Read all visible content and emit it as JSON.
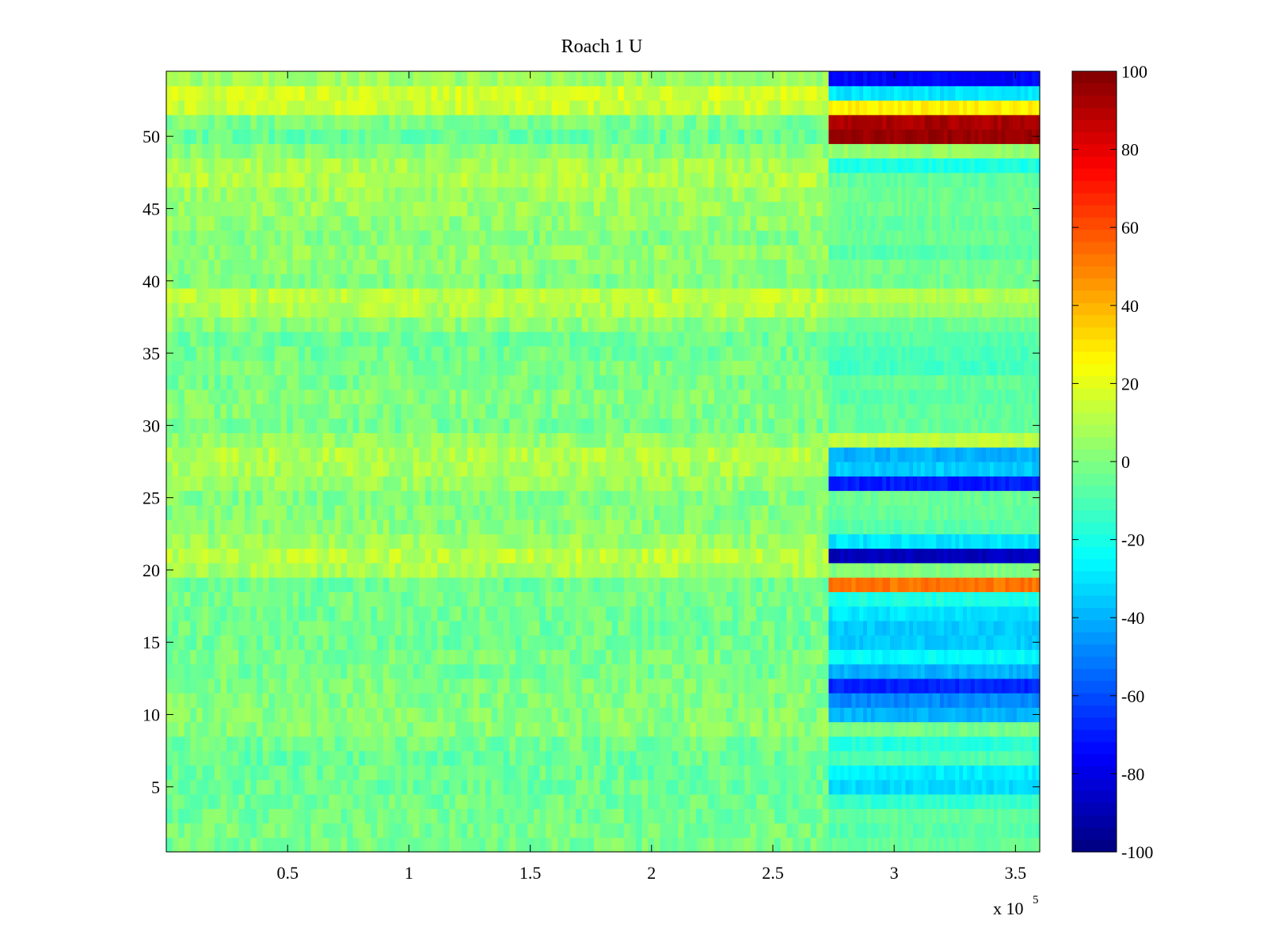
{
  "chart_data": {
    "type": "heatmap",
    "title": "Roach 1 U",
    "xlabel": "",
    "ylabel": "",
    "x_exponent_label": "x 10",
    "x_exponent_power": "5",
    "xlim": [
      0,
      3.6
    ],
    "ylim": [
      0.5,
      54.5
    ],
    "x_ticks": [
      0.5,
      1,
      1.5,
      2,
      2.5,
      3,
      3.5
    ],
    "x_tick_labels": [
      "0.5",
      "1",
      "1.5",
      "2",
      "2.5",
      "3",
      "3.5"
    ],
    "y_ticks": [
      5,
      10,
      15,
      20,
      25,
      30,
      35,
      40,
      45,
      50
    ],
    "y_tick_labels": [
      "5",
      "10",
      "15",
      "20",
      "25",
      "30",
      "35",
      "40",
      "45",
      "50"
    ],
    "colormap": "jet",
    "color_range": [
      -100,
      100
    ],
    "colorbar_ticks": [
      100,
      80,
      60,
      40,
      20,
      0,
      -20,
      -40,
      -60,
      -80,
      -100
    ],
    "colorbar_tick_labels": [
      "100",
      "80",
      "60",
      "40",
      "20",
      "0",
      "-20",
      "-40",
      "-60",
      "-80",
      "-100"
    ],
    "rows": 54,
    "segment_break_x": 2.73,
    "row_means_left": [
      -2,
      -2,
      -3,
      -3,
      -4,
      -4,
      -5,
      -3,
      2,
      1,
      0,
      0,
      -2,
      -1,
      -3,
      -3,
      -3,
      -2,
      -4,
      8,
      12,
      6,
      2,
      1,
      0,
      5,
      8,
      10,
      4,
      -2,
      0,
      1,
      -2,
      0,
      -3,
      -4,
      2,
      10,
      12,
      0,
      2,
      4,
      0,
      3,
      5,
      6,
      10,
      8,
      2,
      -5,
      -1,
      14,
      16,
      6
    ],
    "row_means_right": [
      -5,
      -8,
      -6,
      -15,
      -32,
      -28,
      -10,
      -18,
      -2,
      -40,
      -48,
      -68,
      -40,
      -25,
      -35,
      -35,
      -30,
      -20,
      52,
      0,
      -88,
      -30,
      -8,
      -5,
      -4,
      -70,
      -35,
      -40,
      12,
      -5,
      -6,
      -8,
      -5,
      -12,
      -10,
      -8,
      -4,
      5,
      10,
      -3,
      -2,
      -8,
      -4,
      -5,
      -3,
      -4,
      -6,
      -20,
      5,
      95,
      92,
      28,
      -30,
      -75
    ]
  }
}
